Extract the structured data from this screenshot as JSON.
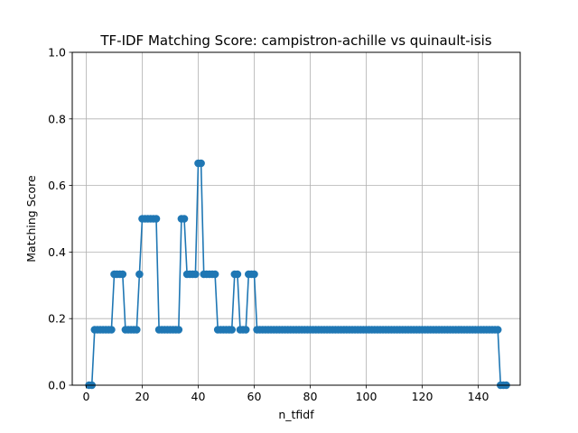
{
  "chart_data": {
    "type": "line",
    "title": "TF-IDF Matching Score: campistron-achille vs quinault-isis",
    "xlabel": "n_tfidf",
    "ylabel": "Matching Score",
    "xlim": [
      -5,
      155
    ],
    "ylim": [
      0,
      1.0
    ],
    "xticks": [
      0,
      20,
      40,
      60,
      80,
      100,
      120,
      140
    ],
    "yticks": [
      0.0,
      0.2,
      0.4,
      0.6,
      0.8,
      1.0
    ],
    "grid": true,
    "color": "#1f77b4",
    "marker": "circle",
    "series": [
      {
        "x": [
          1,
          2,
          3,
          4,
          5,
          6,
          7,
          8,
          9,
          10,
          11,
          12,
          13,
          14,
          15,
          16,
          17,
          18,
          19,
          20,
          21,
          22,
          23,
          24,
          25,
          26,
          27,
          28,
          29,
          30,
          31,
          32,
          33,
          34,
          35,
          36,
          37,
          38,
          39,
          40,
          41,
          42,
          43,
          44,
          45,
          46,
          47,
          48,
          49,
          50,
          51,
          52,
          53,
          54,
          55,
          56,
          57,
          58,
          59,
          60,
          61,
          62,
          63,
          64,
          65,
          66,
          67,
          68,
          69,
          70,
          71,
          72,
          73,
          74,
          75,
          76,
          77,
          78,
          79,
          80,
          81,
          82,
          83,
          84,
          85,
          86,
          87,
          88,
          89,
          90,
          91,
          92,
          93,
          94,
          95,
          96,
          97,
          98,
          99,
          100,
          101,
          102,
          103,
          104,
          105,
          106,
          107,
          108,
          109,
          110,
          111,
          112,
          113,
          114,
          115,
          116,
          117,
          118,
          119,
          120,
          121,
          122,
          123,
          124,
          125,
          126,
          127,
          128,
          129,
          130,
          131,
          132,
          133,
          134,
          135,
          136,
          137,
          138,
          139,
          140,
          141,
          142,
          143,
          144,
          145,
          146,
          147,
          148,
          149,
          150
        ],
        "y": [
          0,
          0,
          0.1667,
          0.1667,
          0.1667,
          0.1667,
          0.1667,
          0.1667,
          0.1667,
          0.3333,
          0.3333,
          0.3333,
          0.3333,
          0.1667,
          0.1667,
          0.1667,
          0.1667,
          0.1667,
          0.3333,
          0.5,
          0.5,
          0.5,
          0.5,
          0.5,
          0.5,
          0.1667,
          0.1667,
          0.1667,
          0.1667,
          0.1667,
          0.1667,
          0.1667,
          0.1667,
          0.5,
          0.5,
          0.3333,
          0.3333,
          0.3333,
          0.3333,
          0.6667,
          0.6667,
          0.3333,
          0.3333,
          0.3333,
          0.3333,
          0.3333,
          0.1667,
          0.1667,
          0.1667,
          0.1667,
          0.1667,
          0.1667,
          0.3333,
          0.3333,
          0.1667,
          0.1667,
          0.1667,
          0.3333,
          0.3333,
          0.3333,
          0.1667,
          0.1667,
          0.1667,
          0.1667,
          0.1667,
          0.1667,
          0.1667,
          0.1667,
          0.1667,
          0.1667,
          0.1667,
          0.1667,
          0.1667,
          0.1667,
          0.1667,
          0.1667,
          0.1667,
          0.1667,
          0.1667,
          0.1667,
          0.1667,
          0.1667,
          0.1667,
          0.1667,
          0.1667,
          0.1667,
          0.1667,
          0.1667,
          0.1667,
          0.1667,
          0.1667,
          0.1667,
          0.1667,
          0.1667,
          0.1667,
          0.1667,
          0.1667,
          0.1667,
          0.1667,
          0.1667,
          0.1667,
          0.1667,
          0.1667,
          0.1667,
          0.1667,
          0.1667,
          0.1667,
          0.1667,
          0.1667,
          0.1667,
          0.1667,
          0.1667,
          0.1667,
          0.1667,
          0.1667,
          0.1667,
          0.1667,
          0.1667,
          0.1667,
          0.1667,
          0.1667,
          0.1667,
          0.1667,
          0.1667,
          0.1667,
          0.1667,
          0.1667,
          0.1667,
          0.1667,
          0.1667,
          0.1667,
          0.1667,
          0.1667,
          0.1667,
          0.1667,
          0.1667,
          0.1667,
          0.1667,
          0.1667,
          0.1667,
          0.1667,
          0.1667,
          0.1667,
          0.1667,
          0.1667,
          0.1667,
          0.1667,
          0,
          0,
          0
        ]
      }
    ]
  }
}
